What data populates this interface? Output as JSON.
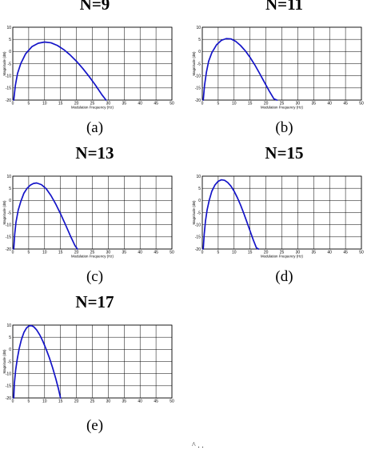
{
  "chart_data": [
    {
      "type": "line",
      "title": "N=9",
      "caption": "(a)",
      "xlabel": "Modulation Frequency (Hz)",
      "ylabel": "Magnitude (dB)",
      "xlim": [
        0,
        50
      ],
      "ylim": [
        -20,
        10
      ],
      "xticks": [
        0,
        5,
        10,
        15,
        20,
        25,
        30,
        35,
        40,
        45,
        50
      ],
      "yticks": [
        10,
        5,
        0,
        -5,
        -10,
        -15,
        -20
      ],
      "grid": true,
      "series": [
        {
          "color": "#1414c8",
          "x": [
            0.3,
            0.8,
            1.5,
            2.5,
            4,
            6,
            8,
            10,
            12,
            14,
            16,
            18,
            20,
            22,
            24,
            26,
            28,
            29.3
          ],
          "y": [
            -20,
            -14,
            -9,
            -5,
            -1,
            2.0,
            3.4,
            3.9,
            3.6,
            2.5,
            0.8,
            -1.4,
            -4.0,
            -7.0,
            -10.3,
            -13.9,
            -17.8,
            -20
          ]
        }
      ]
    },
    {
      "type": "line",
      "title": "N=11",
      "caption": "(b)",
      "xlabel": "Modulation Frequency (Hz)",
      "ylabel": "Magnitude (dB)",
      "xlim": [
        0,
        50
      ],
      "ylim": [
        -20,
        10
      ],
      "xticks": [
        0,
        5,
        10,
        15,
        20,
        25,
        30,
        35,
        40,
        45,
        50
      ],
      "yticks": [
        10,
        5,
        0,
        -5,
        -10,
        -15,
        -20
      ],
      "grid": true,
      "series": [
        {
          "color": "#1414c8",
          "x": [
            0.3,
            0.7,
            1.3,
            2,
            3,
            4.5,
            6,
            7.5,
            9,
            10.5,
            12,
            13.5,
            15,
            16.5,
            18,
            19.5,
            21,
            22.5,
            23.5
          ],
          "y": [
            -20,
            -14,
            -8.5,
            -4,
            -0.5,
            2.8,
            4.6,
            5.3,
            5.2,
            4.2,
            2.5,
            0.3,
            -2.4,
            -5.5,
            -9.0,
            -12.6,
            -16.2,
            -19.5,
            -20
          ]
        }
      ]
    },
    {
      "type": "line",
      "title": "N=13",
      "caption": "(c)",
      "xlabel": "Modulation Frequency (Hz)",
      "ylabel": "Magnitude (dB)",
      "xlim": [
        0,
        50
      ],
      "ylim": [
        -20,
        10
      ],
      "xticks": [
        0,
        5,
        10,
        15,
        20,
        25,
        30,
        35,
        40,
        45,
        50
      ],
      "yticks": [
        10,
        5,
        0,
        -5,
        -10,
        -15,
        -20
      ],
      "grid": true,
      "series": [
        {
          "color": "#1414c8",
          "x": [
            0.3,
            0.6,
            1,
            1.7,
            2.5,
            3.5,
            4.5,
            5.5,
            6.5,
            7.5,
            9,
            10.5,
            12,
            13.5,
            15,
            16.5,
            18,
            19.5,
            20.3
          ],
          "y": [
            -20,
            -14,
            -9,
            -4,
            -0.5,
            3.0,
            5.0,
            6.3,
            7.0,
            7.2,
            6.5,
            4.8,
            2.0,
            -1.5,
            -5.5,
            -9.8,
            -14.3,
            -18.5,
            -20
          ]
        }
      ]
    },
    {
      "type": "line",
      "title": "N=15",
      "caption": "(d)",
      "xlabel": "Modulation Frequency (Hz)",
      "ylabel": "Magnitude (dB)",
      "xlim": [
        0,
        50
      ],
      "ylim": [
        -20,
        10
      ],
      "xticks": [
        0,
        5,
        10,
        15,
        20,
        25,
        30,
        35,
        40,
        45,
        50
      ],
      "yticks": [
        10,
        5,
        0,
        -5,
        -10,
        -15,
        -20
      ],
      "grid": true,
      "series": [
        {
          "color": "#1414c8",
          "x": [
            0.3,
            0.6,
            1,
            1.5,
            2.2,
            3,
            4,
            5,
            6,
            7,
            8,
            9,
            10,
            11,
            12,
            13,
            14,
            15,
            16,
            17,
            17.7
          ],
          "y": [
            -20,
            -14,
            -8.5,
            -4,
            0.2,
            3.8,
            6.4,
            7.9,
            8.5,
            8.3,
            7.4,
            5.9,
            3.8,
            1.2,
            -1.8,
            -5.2,
            -8.8,
            -12.5,
            -16.2,
            -19.5,
            -20
          ]
        }
      ]
    },
    {
      "type": "line",
      "title": "N=17",
      "caption": "(e)",
      "xlabel": "",
      "ylabel": "Magnitude (dB)",
      "xlim": [
        0,
        50
      ],
      "ylim": [
        -20,
        10
      ],
      "xticks": [
        0,
        5,
        10,
        15,
        20,
        25,
        30,
        35,
        40,
        45,
        50
      ],
      "yticks": [
        10,
        5,
        0,
        -5,
        -10,
        -15,
        -20
      ],
      "grid": true,
      "series": [
        {
          "color": "#1414c8",
          "x": [
            0.3,
            0.5,
            0.9,
            1.4,
            2,
            2.7,
            3.5,
            4.3,
            5,
            5.8,
            6.6,
            7.5,
            8.5,
            9.5,
            10.5,
            11.5,
            12.5,
            13.5,
            14.3,
            15
          ],
          "y": [
            -20,
            -14,
            -8.5,
            -4,
            0.3,
            4.0,
            7.0,
            8.8,
            9.6,
            9.8,
            9.3,
            8.0,
            5.9,
            3.2,
            0.0,
            -3.5,
            -7.5,
            -12.0,
            -16.0,
            -20
          ]
        }
      ]
    }
  ],
  "page_fragment": "^ . ."
}
